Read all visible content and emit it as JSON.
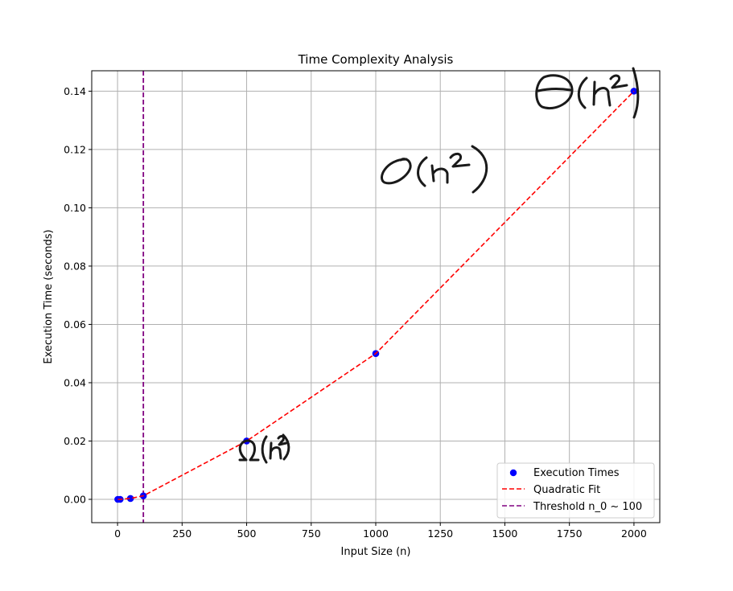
{
  "chart_data": {
    "type": "scatter",
    "title": "Time Complexity Analysis",
    "xlabel": "Input Size (n)",
    "ylabel": "Execution Time (seconds)",
    "xlim": [
      -100,
      2100
    ],
    "ylim": [
      -0.008,
      0.147
    ],
    "x_ticks": [
      0,
      250,
      500,
      750,
      1000,
      1250,
      1500,
      1750,
      2000
    ],
    "y_ticks": [
      0.0,
      0.02,
      0.04,
      0.06,
      0.08,
      0.1,
      0.12,
      0.14
    ],
    "x_tick_labels": [
      "0",
      "250",
      "500",
      "750",
      "1000",
      "1250",
      "1500",
      "1750",
      "2000"
    ],
    "y_tick_labels": [
      "0.00",
      "0.02",
      "0.04",
      "0.06",
      "0.08",
      "0.10",
      "0.12",
      "0.14"
    ],
    "grid": true,
    "legend_position": "lower-right",
    "series": [
      {
        "name": "Execution Times",
        "kind": "scatter",
        "color": "#0000ff",
        "x": [
          1,
          10,
          50,
          100,
          500,
          1000,
          2000
        ],
        "y": [
          0.0,
          0.0,
          0.0003,
          0.0012,
          0.02,
          0.05,
          0.14
        ]
      },
      {
        "name": "Quadratic Fit",
        "kind": "line",
        "style": "dashed",
        "color": "#ff0000",
        "x": [
          1,
          10,
          50,
          100,
          500,
          1000,
          2000
        ],
        "y": [
          0.0,
          0.0,
          0.0003,
          0.0012,
          0.02,
          0.05,
          0.14
        ]
      },
      {
        "name": "Threshold n_0 ~ 100",
        "kind": "vline",
        "style": "dashed",
        "color": "#800080",
        "x": 100
      }
    ],
    "annotations": [
      {
        "name": "handwritten-theta-n-squared",
        "text": "Θ(n²)",
        "x": 1990,
        "y": 0.141
      },
      {
        "name": "handwritten-big-o-n-squared",
        "text": "O(n²)",
        "x": 1230,
        "y": 0.114
      },
      {
        "name": "handwritten-omega-n-squared",
        "text": "Ω(n²)",
        "x": 560,
        "y": 0.016
      }
    ]
  }
}
